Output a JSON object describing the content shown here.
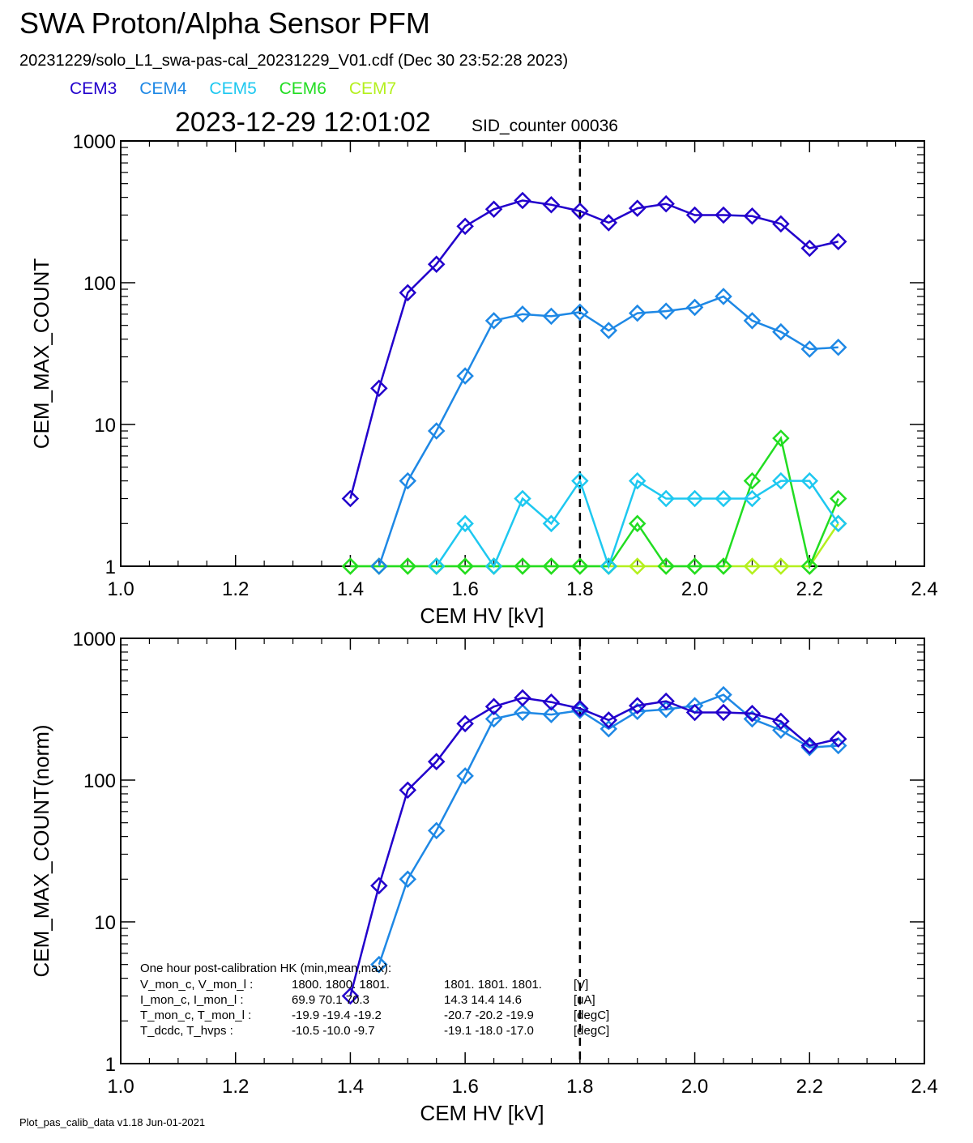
{
  "header": {
    "title": "SWA Proton/Alpha Sensor PFM",
    "file_line": "20231229/solo_L1_swa-pas-cal_20231229_V01.cdf  (Dec 30 23:52:28 2023)",
    "timestamp": "2023-12-29 12:01:02",
    "sid_counter": "SID_counter 00036"
  },
  "legend": [
    {
      "name": "CEM3",
      "color": "#2200cc"
    },
    {
      "name": "CEM4",
      "color": "#1e88e5"
    },
    {
      "name": "CEM5",
      "color": "#1ec8f0"
    },
    {
      "name": "CEM6",
      "color": "#22dd22"
    },
    {
      "name": "CEM7",
      "color": "#b4f01e"
    }
  ],
  "footer": "Plot_pas_calib_data v1.18 Jun-01-2021",
  "hk": {
    "title": "One hour post-calibration HK (min,mean,max):",
    "rows": [
      {
        "label": "V_mon_c, V_mon_l :",
        "c": "1800.  1800.  1801.",
        "l": "1801.  1801.  1801.",
        "unit": "[V]"
      },
      {
        "label": "I_mon_c,  I_mon_l :",
        "c": "69.9   70.1   70.3",
        "l": "14.3   14.4   14.6",
        "unit": "[uA]"
      },
      {
        "label": "T_mon_c, T_mon_l :",
        "c": "-19.9  -19.4  -19.2",
        "l": "-20.7  -20.2  -19.9",
        "unit": "[degC]"
      },
      {
        "label": "T_dcdc,    T_hvps :",
        "c": "-10.5  -10.0   -9.7",
        "l": "-19.1  -18.0  -17.0",
        "unit": "[degC]"
      }
    ]
  },
  "chart_data": [
    {
      "type": "line",
      "xlabel": "CEM HV [kV]",
      "ylabel": "CEM_MAX_COUNT",
      "xlim": [
        1.0,
        2.4
      ],
      "ylim": [
        1,
        1000
      ],
      "yscale": "log",
      "xticks": [
        "1.0",
        "1.2",
        "1.4",
        "1.6",
        "1.8",
        "2.0",
        "2.2",
        "2.4"
      ],
      "yticks": [
        "1",
        "10",
        "100",
        "1000"
      ],
      "vline_x": 1.8,
      "x": [
        1.4,
        1.45,
        1.5,
        1.55,
        1.6,
        1.65,
        1.7,
        1.75,
        1.8,
        1.85,
        1.9,
        1.95,
        2.0,
        2.05,
        2.1,
        2.15,
        2.2,
        2.25
      ],
      "series": [
        {
          "name": "CEM3",
          "color": "#2200cc",
          "values": [
            3,
            18,
            85,
            135,
            250,
            330,
            380,
            355,
            320,
            265,
            335,
            360,
            300,
            300,
            295,
            260,
            175,
            195
          ]
        },
        {
          "name": "CEM4",
          "color": "#1e88e5",
          "values": [
            null,
            1,
            4,
            9,
            22,
            54,
            60,
            58,
            62,
            46,
            61,
            63,
            67,
            80,
            54,
            45,
            34,
            35
          ]
        },
        {
          "name": "CEM5",
          "color": "#1ec8f0",
          "values": [
            null,
            null,
            null,
            1,
            2,
            1,
            3,
            2,
            4,
            1,
            4,
            3,
            3,
            3,
            3,
            4,
            4,
            2
          ]
        },
        {
          "name": "CEM6",
          "color": "#22dd22",
          "values": [
            1,
            1,
            1,
            1,
            1,
            1,
            1,
            1,
            1,
            1,
            2,
            1,
            1,
            1,
            4,
            8,
            1,
            3
          ]
        },
        {
          "name": "CEM7",
          "color": "#b4f01e",
          "values": [
            1,
            1,
            1,
            1,
            1,
            1,
            1,
            1,
            1,
            1,
            1,
            1,
            1,
            1,
            1,
            1,
            1,
            2
          ]
        }
      ]
    },
    {
      "type": "line",
      "xlabel": "CEM HV [kV]",
      "ylabel": "CEM_MAX_COUNT(norm)",
      "xlim": [
        1.0,
        2.4
      ],
      "ylim": [
        1,
        1000
      ],
      "yscale": "log",
      "xticks": [
        "1.0",
        "1.2",
        "1.4",
        "1.6",
        "1.8",
        "2.0",
        "2.2",
        "2.4"
      ],
      "yticks": [
        "1",
        "10",
        "100",
        "1000"
      ],
      "vline_x": 1.8,
      "x": [
        1.4,
        1.45,
        1.5,
        1.55,
        1.6,
        1.65,
        1.7,
        1.75,
        1.8,
        1.85,
        1.9,
        1.95,
        2.0,
        2.05,
        2.1,
        2.15,
        2.2,
        2.25
      ],
      "series": [
        {
          "name": "CEM3",
          "color": "#2200cc",
          "values": [
            3,
            18,
            85,
            135,
            250,
            330,
            380,
            355,
            320,
            265,
            335,
            360,
            300,
            300,
            295,
            260,
            175,
            195
          ]
        },
        {
          "name": "CEM4",
          "color": "#1e88e5",
          "values": [
            null,
            5,
            20,
            44,
            107,
            270,
            300,
            290,
            310,
            230,
            305,
            315,
            335,
            400,
            270,
            225,
            170,
            175
          ]
        }
      ]
    }
  ]
}
